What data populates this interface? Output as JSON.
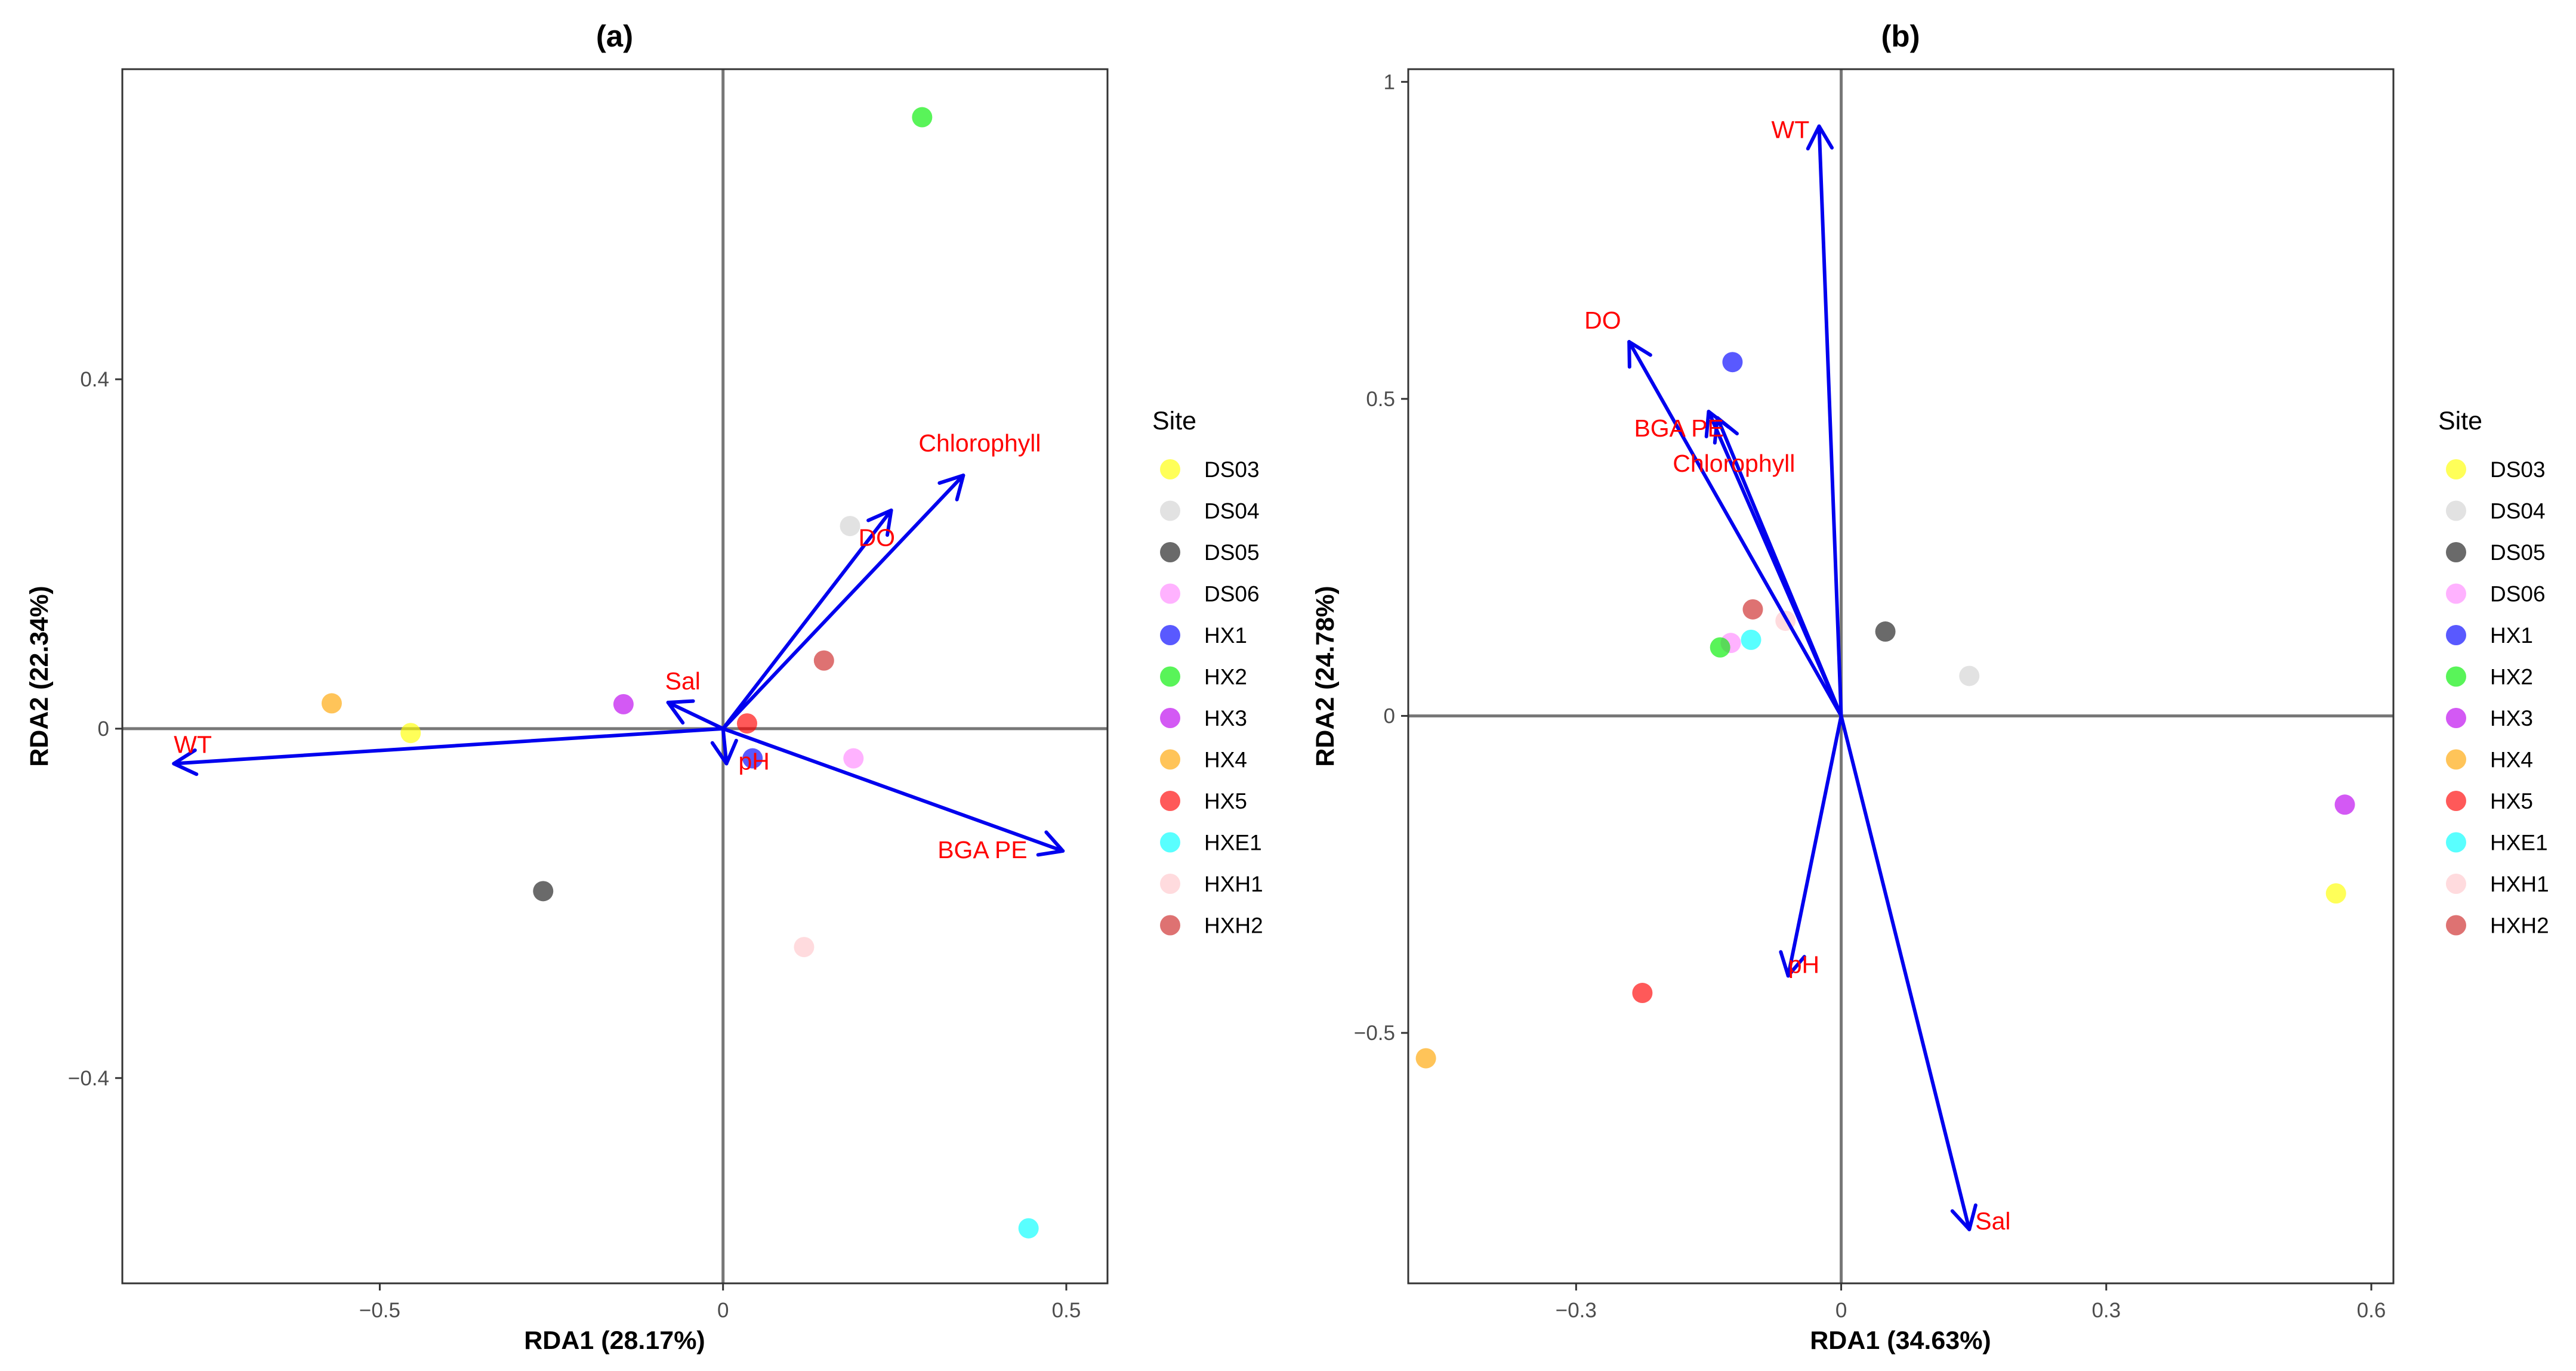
{
  "chart_data": [
    {
      "panel": "a",
      "type": "scatter",
      "title": "(a)",
      "xlabel": "RDA1 (28.17%)",
      "ylabel": "RDA2 (22.34%)",
      "xlim": [
        -0.875,
        0.56
      ],
      "ylim": [
        -0.635,
        0.755
      ],
      "xticks": [
        -0.5,
        0,
        0.5
      ],
      "xtick_labels": [
        "−0.5",
        "0",
        "0.5"
      ],
      "yticks": [
        -0.4,
        0,
        0.4
      ],
      "ytick_labels": [
        "−0.4",
        "0",
        "0.4"
      ],
      "points": [
        {
          "site": "DS03",
          "x": -0.455,
          "y": -0.005
        },
        {
          "site": "DS04",
          "x": 0.185,
          "y": 0.232
        },
        {
          "site": "DS05",
          "x": -0.262,
          "y": -0.186
        },
        {
          "site": "DS06",
          "x": 0.19,
          "y": -0.034
        },
        {
          "site": "HX1",
          "x": 0.043,
          "y": -0.034
        },
        {
          "site": "HX2",
          "x": 0.29,
          "y": 0.7
        },
        {
          "site": "HX3",
          "x": -0.145,
          "y": 0.028
        },
        {
          "site": "HX4",
          "x": -0.57,
          "y": 0.029
        },
        {
          "site": "HX5",
          "x": 0.035,
          "y": 0.006
        },
        {
          "site": "HXE1",
          "x": 0.445,
          "y": -0.572
        },
        {
          "site": "HXH1",
          "x": 0.118,
          "y": -0.25
        },
        {
          "site": "HXH2",
          "x": 0.147,
          "y": 0.078
        }
      ],
      "arrows": [
        {
          "label": "WT",
          "x": -0.8,
          "y": -0.04
        },
        {
          "label": "BGA PE",
          "x": 0.495,
          "y": -0.14
        },
        {
          "label": "Chlorophyll",
          "x": 0.35,
          "y": 0.29
        },
        {
          "label": "DO",
          "x": 0.245,
          "y": 0.25
        },
        {
          "label": "Sal",
          "x": -0.08,
          "y": 0.03
        },
        {
          "label": "pH",
          "x": 0.005,
          "y": -0.04
        }
      ]
    },
    {
      "panel": "b",
      "type": "scatter",
      "title": "(b)",
      "xlabel": "RDA1 (34.63%)",
      "ylabel": "RDA2 (24.78%)",
      "xlim": [
        -0.49,
        0.625
      ],
      "ylim": [
        -0.895,
        1.02
      ],
      "xticks": [
        -0.3,
        0,
        0.3,
        0.6
      ],
      "xtick_labels": [
        "−0.3",
        "0",
        "0.3",
        "0.6"
      ],
      "yticks": [
        -0.5,
        0,
        0.5,
        1
      ],
      "ytick_labels": [
        "−0.5",
        "0",
        "0.5",
        "1"
      ],
      "points": [
        {
          "site": "DS03",
          "x": 0.56,
          "y": -0.28
        },
        {
          "site": "DS04",
          "x": 0.145,
          "y": 0.063
        },
        {
          "site": "DS05",
          "x": 0.05,
          "y": 0.133
        },
        {
          "site": "DS06",
          "x": -0.125,
          "y": 0.115
        },
        {
          "site": "HX1",
          "x": -0.123,
          "y": 0.558
        },
        {
          "site": "HX2",
          "x": -0.137,
          "y": 0.108
        },
        {
          "site": "HX3",
          "x": 0.57,
          "y": -0.14
        },
        {
          "site": "HX4",
          "x": -0.47,
          "y": -0.54
        },
        {
          "site": "HX5",
          "x": -0.225,
          "y": -0.437
        },
        {
          "site": "HXE1",
          "x": -0.102,
          "y": 0.12
        },
        {
          "site": "HXH1",
          "x": -0.063,
          "y": 0.15
        },
        {
          "site": "HXH2",
          "x": -0.1,
          "y": 0.168
        }
      ],
      "arrows": [
        {
          "label": "WT",
          "x": -0.025,
          "y": 0.93
        },
        {
          "label": "DO",
          "x": -0.24,
          "y": 0.59
        },
        {
          "label": "BGA PE",
          "x": -0.15,
          "y": 0.48
        },
        {
          "label": "Chlorophyll",
          "x": -0.14,
          "y": 0.47
        },
        {
          "label": "pH",
          "x": -0.06,
          "y": -0.41
        },
        {
          "label": "Sal",
          "x": 0.145,
          "y": -0.81
        }
      ]
    }
  ],
  "legend": {
    "title": "Site",
    "items": [
      {
        "label": "DS03",
        "color": "#ffff00"
      },
      {
        "label": "DS04",
        "color": "#d3d3d3"
      },
      {
        "label": "DS05",
        "color": "#1a1a1a"
      },
      {
        "label": "DS06",
        "color": "#ff88ff"
      },
      {
        "label": "HX1",
        "color": "#0000ff"
      },
      {
        "label": "HX2",
        "color": "#00ee00"
      },
      {
        "label": "HX3",
        "color": "#bb00ee"
      },
      {
        "label": "HX4",
        "color": "#ffa500"
      },
      {
        "label": "HX5",
        "color": "#ff0000"
      },
      {
        "label": "HXE1",
        "color": "#00ffff"
      },
      {
        "label": "HXH1",
        "color": "#ffc8cc"
      },
      {
        "label": "HXH2",
        "color": "#cd2626"
      }
    ]
  },
  "colors": {
    "arrow": "#0000ee",
    "arrow_label": "#ff0000",
    "zero_line": "#777777"
  }
}
